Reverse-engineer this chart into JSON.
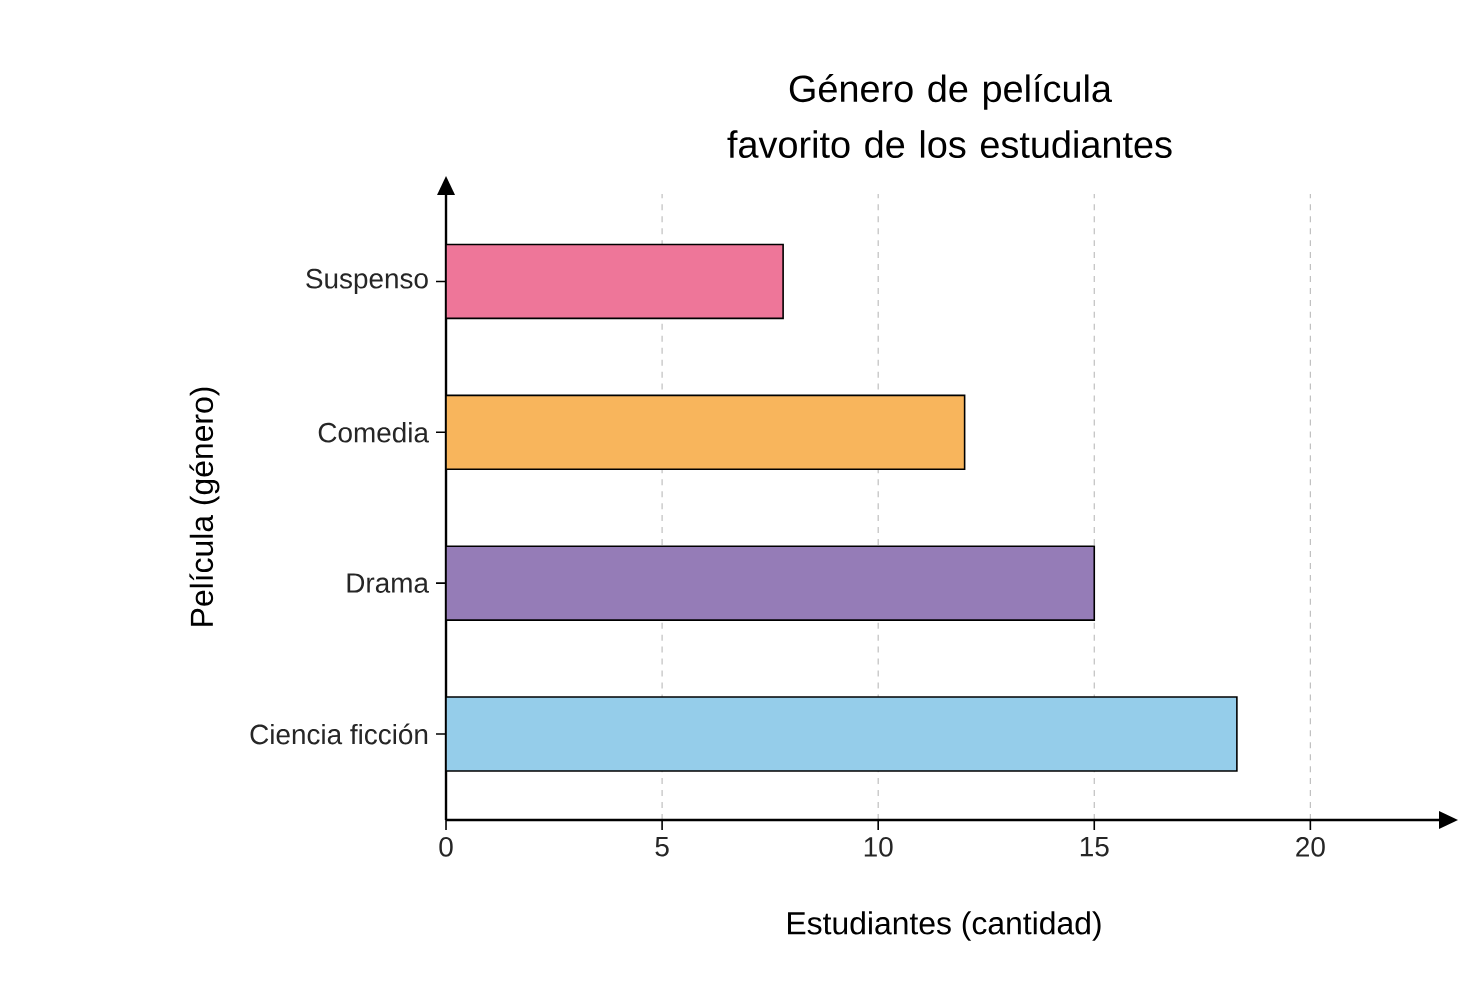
{
  "chart_data": {
    "type": "bar",
    "orientation": "horizontal",
    "title": "Género de película favorito de los estudiantes",
    "xlabel": "Estudiantes (cantidad)",
    "ylabel": "Película (género)",
    "categories": [
      "Suspenso",
      "Comedia",
      "Drama",
      "Ciencia ficción"
    ],
    "values": [
      7.8,
      12,
      15,
      18.3
    ],
    "colors": [
      "#ee7699",
      "#f8b55c",
      "#957cb7",
      "#95cdea"
    ],
    "xlim": [
      0,
      23
    ],
    "xticks": [
      0,
      5,
      10,
      15,
      20
    ],
    "grid": "x"
  }
}
